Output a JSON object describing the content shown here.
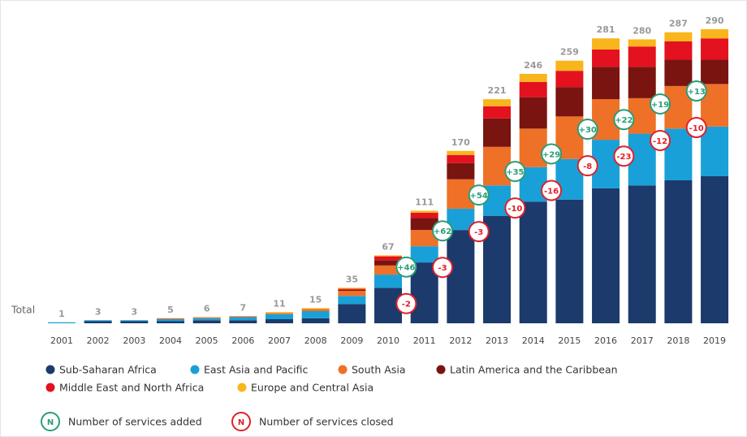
{
  "chart_data": {
    "type": "bar",
    "categories": [
      "2001",
      "2002",
      "2003",
      "2004",
      "2005",
      "2006",
      "2007",
      "2008",
      "2009",
      "2010",
      "2011",
      "2012",
      "2013",
      "2014",
      "2015",
      "2016",
      "2017",
      "2018",
      "2019"
    ],
    "series": [
      {
        "name": "Sub-Saharan Africa",
        "color": "#1c3a6b",
        "values": [
          0,
          2,
          2,
          2,
          3,
          3,
          4,
          5,
          19,
          35,
          60,
          92,
          106,
          120,
          122,
          133,
          136,
          141,
          145
        ]
      },
      {
        "name": "East Asia and Pacific",
        "color": "#1aa0d8",
        "values": [
          1,
          1,
          1,
          2,
          2,
          3,
          5,
          7,
          8,
          13,
          16,
          21,
          30,
          34,
          40,
          48,
          51,
          51,
          49
        ]
      },
      {
        "name": "South Asia",
        "color": "#ee7127",
        "values": [
          0,
          0,
          0,
          1,
          1,
          1,
          1,
          2,
          5,
          9,
          16,
          29,
          38,
          38,
          42,
          40,
          35,
          42,
          42
        ]
      },
      {
        "name": "Latin America and the Caribbean",
        "color": "#7a1410",
        "values": [
          0,
          0,
          0,
          0,
          0,
          0,
          0,
          0,
          1,
          5,
          12,
          16,
          28,
          31,
          29,
          32,
          31,
          26,
          24
        ]
      },
      {
        "name": "Middle East and North Africa",
        "color": "#e4111e",
        "values": [
          0,
          0,
          0,
          0,
          0,
          0,
          0,
          0,
          1,
          4,
          5,
          8,
          12,
          15,
          16,
          17,
          20,
          18,
          21
        ]
      },
      {
        "name": "Europe and Central Asia",
        "color": "#f9b51c",
        "values": [
          0,
          0,
          0,
          0,
          0,
          0,
          1,
          1,
          1,
          1,
          2,
          4,
          7,
          8,
          10,
          11,
          7,
          9,
          9
        ]
      }
    ],
    "total_label": "Total",
    "totals": [
      1,
      3,
      3,
      5,
      6,
      7,
      11,
      15,
      35,
      67,
      111,
      170,
      221,
      246,
      259,
      281,
      280,
      287,
      290
    ],
    "added": [
      null,
      null,
      null,
      null,
      null,
      null,
      null,
      null,
      null,
      null,
      46,
      62,
      54,
      35,
      29,
      30,
      22,
      19,
      13
    ],
    "added_labels": [
      null,
      null,
      null,
      null,
      null,
      null,
      null,
      null,
      null,
      null,
      "+46",
      "+62",
      "+54",
      "+35",
      "+29",
      "+30",
      "+22",
      "+19",
      "+13"
    ],
    "closed": [
      null,
      null,
      null,
      null,
      null,
      null,
      null,
      null,
      null,
      null,
      -2,
      -3,
      -3,
      -10,
      -16,
      -8,
      -23,
      -12,
      -10
    ],
    "added_color": "#2a9d77",
    "closed_color": "#e0202a",
    "ylim": [
      0,
      290
    ],
    "annotation_legend": [
      {
        "symbol": "N",
        "label": "Number of services added"
      },
      {
        "symbol": "N",
        "label": "Number of services closed"
      }
    ]
  }
}
